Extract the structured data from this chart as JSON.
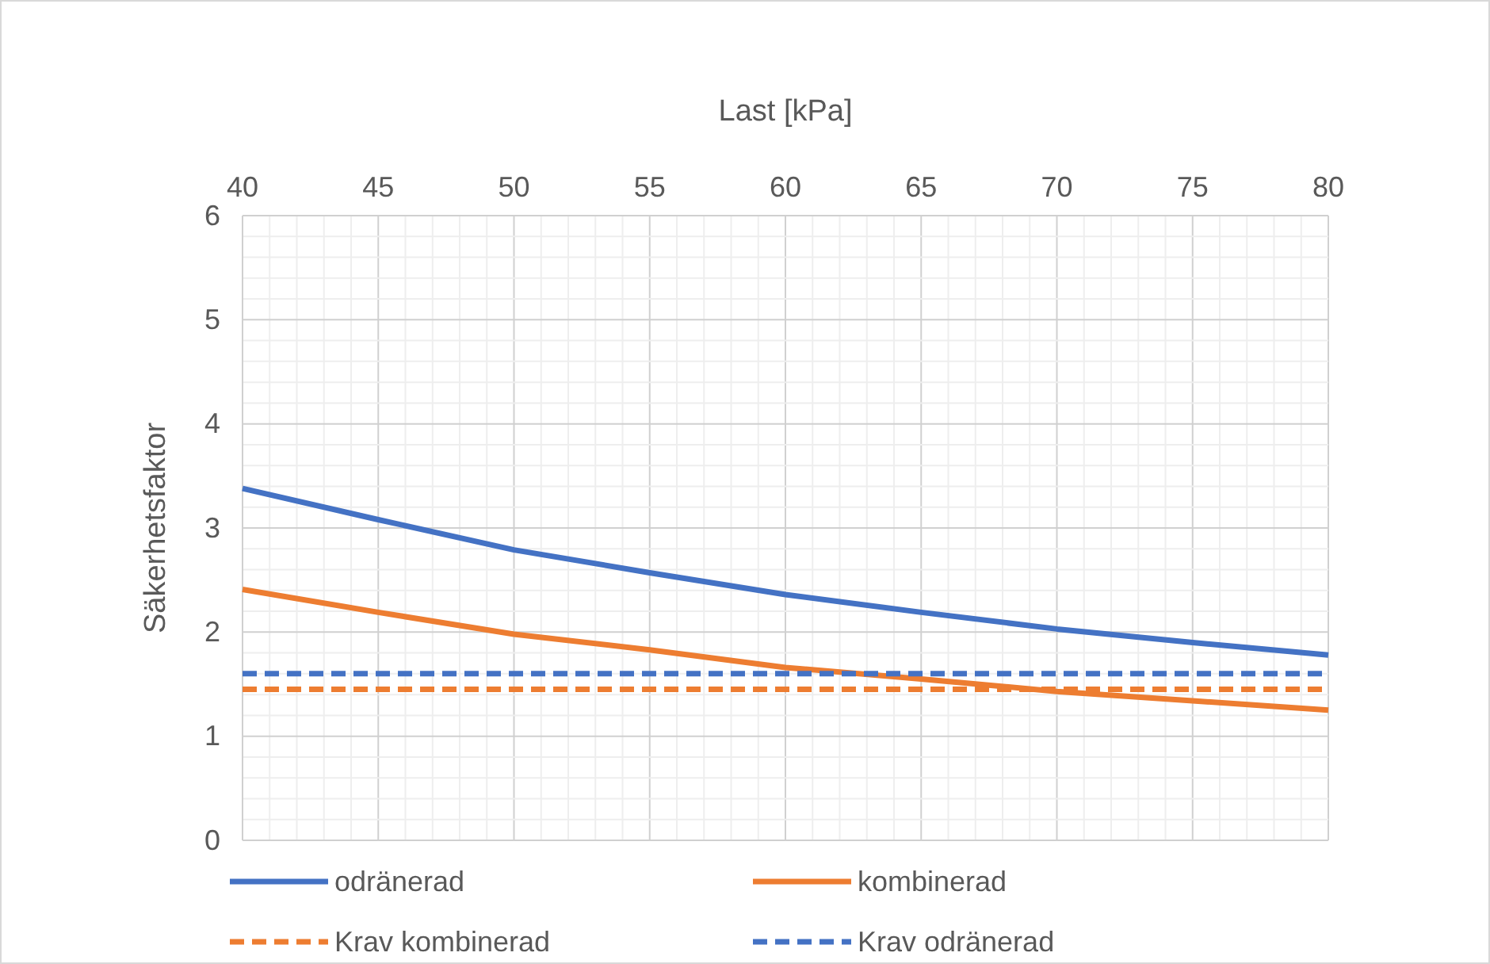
{
  "chart_data": {
    "type": "line",
    "xlabel": "Last [kPa]",
    "ylabel": "Säkerhetsfaktor",
    "x": [
      40,
      45,
      50,
      55,
      60,
      65,
      70,
      75,
      80
    ],
    "xlim": [
      40,
      80
    ],
    "xticks": [
      40,
      45,
      50,
      55,
      60,
      65,
      70,
      75,
      80
    ],
    "ylim": [
      0,
      6
    ],
    "yticks": [
      0,
      1,
      2,
      3,
      4,
      5,
      6
    ],
    "grid": true,
    "legend": "bottom",
    "marker": "none",
    "series": [
      {
        "name": "odränerad",
        "color": "#4472c4",
        "line_style": "solid",
        "values": [
          3.38,
          3.08,
          2.79,
          2.57,
          2.36,
          2.19,
          2.03,
          1.9,
          1.78
        ]
      },
      {
        "name": "kombinerad",
        "color": "#ed7d31",
        "line_style": "solid",
        "values": [
          2.41,
          2.19,
          1.98,
          1.83,
          1.66,
          1.55,
          1.43,
          1.34,
          1.25
        ]
      },
      {
        "name": "Krav kombinerad",
        "color": "#ed7d31",
        "line_style": "dashed",
        "values": [
          1.45,
          1.45,
          1.45,
          1.45,
          1.45,
          1.45,
          1.45,
          1.45,
          1.45
        ]
      },
      {
        "name": "Krav odränerad",
        "color": "#4472c4",
        "line_style": "dashed",
        "values": [
          1.6,
          1.6,
          1.6,
          1.6,
          1.6,
          1.6,
          1.6,
          1.6,
          1.6
        ]
      }
    ]
  }
}
